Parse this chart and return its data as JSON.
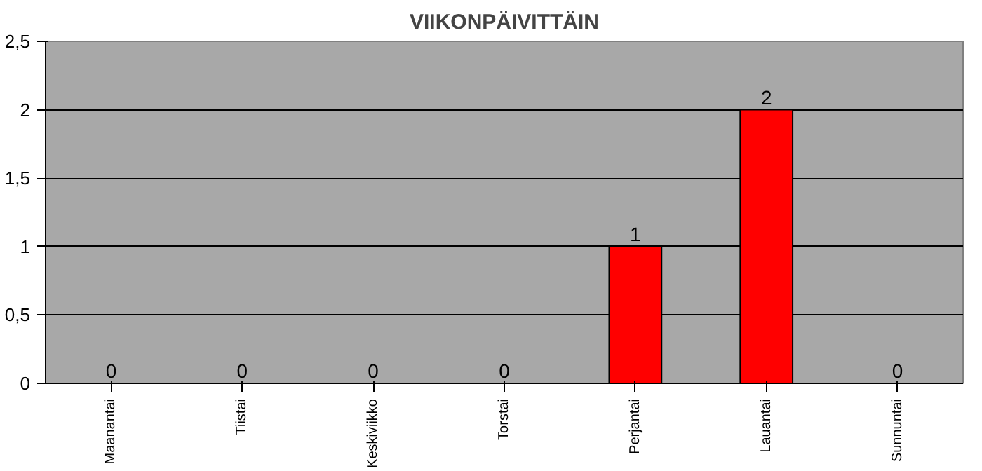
{
  "chart_data": {
    "type": "bar",
    "title": "VIIKONPÄIVITTÄIN",
    "categories": [
      "Maanantai",
      "Tiistai",
      "Keskiviikko",
      "Torstai",
      "Perjantai",
      "Lauantai",
      "Sunnuntai"
    ],
    "values": [
      0,
      0,
      0,
      0,
      1,
      2,
      0
    ],
    "color": "#ff0000",
    "ylim": [
      0,
      2.5
    ],
    "yticks": [
      0,
      {
        "value": 0.5,
        "label": "0,5"
      },
      1,
      {
        "value": 1.5,
        "label": "1,5"
      },
      2,
      {
        "value": 2.5,
        "label": "2,5"
      }
    ],
    "grid": "y",
    "data_labels": true
  }
}
